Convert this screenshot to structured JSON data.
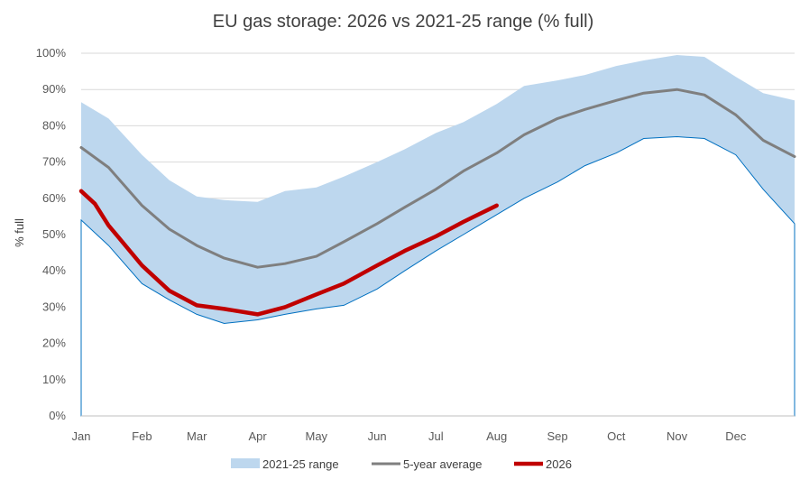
{
  "chart_data": {
    "type": "area",
    "title": "EU gas storage: 2026 vs 2021-25 range (% full)",
    "xlabel": "",
    "ylabel": "% full",
    "ylim": [
      0,
      100
    ],
    "y_ticks": [
      "0%",
      "10%",
      "20%",
      "30%",
      "40%",
      "50%",
      "60%",
      "70%",
      "80%",
      "90%",
      "100%"
    ],
    "categories": [
      "Jan",
      "Feb",
      "Mar",
      "Apr",
      "May",
      "Jun",
      "Jul",
      "Aug",
      "Sep",
      "Oct",
      "Nov",
      "Dec"
    ],
    "grid": true,
    "legend_position": "bottom",
    "colors": {
      "range": "#bdd7ee",
      "range_edge": "#0070c0",
      "average": "#7f7f7f",
      "current": "#c00000",
      "grid": "#d9d9d9"
    },
    "series": [
      {
        "name": "2021-25 range",
        "kind": "band",
        "x": [
          "Jan 1",
          "Jan 15",
          "Feb 1",
          "Feb 15",
          "Mar 1",
          "Mar 15",
          "Apr 1",
          "Apr 15",
          "May 1",
          "May 15",
          "Jun 1",
          "Jun 15",
          "Jul 1",
          "Jul 15",
          "Aug 1",
          "Aug 15",
          "Sep 1",
          "Sep 15",
          "Oct 1",
          "Oct 15",
          "Nov 1",
          "Nov 15",
          "Dec 1",
          "Dec 15",
          "Dec 31"
        ],
        "upper": [
          86.5,
          82.0,
          72.0,
          65.0,
          60.5,
          59.5,
          59.0,
          62.0,
          63.0,
          66.0,
          70.0,
          73.5,
          78.0,
          81.0,
          86.0,
          91.0,
          92.5,
          94.0,
          96.5,
          98.0,
          99.5,
          99.0,
          93.5,
          89.0,
          87.0
        ],
        "lower": [
          54.0,
          47.0,
          36.5,
          32.0,
          28.0,
          25.5,
          26.5,
          28.0,
          29.5,
          30.5,
          35.0,
          40.0,
          45.5,
          50.0,
          55.5,
          60.0,
          64.5,
          69.0,
          72.5,
          76.5,
          77.0,
          76.5,
          72.0,
          62.5,
          53.0
        ]
      },
      {
        "name": "5-year average",
        "kind": "line",
        "x": [
          "Jan 1",
          "Jan 15",
          "Feb 1",
          "Feb 15",
          "Mar 1",
          "Mar 15",
          "Apr 1",
          "Apr 15",
          "May 1",
          "May 15",
          "Jun 1",
          "Jun 15",
          "Jul 1",
          "Jul 15",
          "Aug 1",
          "Aug 15",
          "Sep 1",
          "Sep 15",
          "Oct 1",
          "Oct 15",
          "Nov 1",
          "Nov 15",
          "Dec 1",
          "Dec 15",
          "Dec 31"
        ],
        "values": [
          74.0,
          68.5,
          58.0,
          51.5,
          47.0,
          43.5,
          41.0,
          42.0,
          44.0,
          48.0,
          53.0,
          57.5,
          62.5,
          67.5,
          72.5,
          77.5,
          82.0,
          84.5,
          87.0,
          89.0,
          90.0,
          88.5,
          83.0,
          76.0,
          71.5
        ]
      },
      {
        "name": "2026",
        "kind": "line",
        "x": [
          "Jan 1",
          "Jan 8",
          "Jan 15",
          "Feb 1",
          "Feb 15",
          "Mar 1",
          "Mar 15",
          "Apr 1",
          "Apr 15",
          "May 1",
          "May 15",
          "Jun 1",
          "Jun 15",
          "Jul 1",
          "Jul 15",
          "Aug 1"
        ],
        "values": [
          62.0,
          58.5,
          52.5,
          41.5,
          34.5,
          30.5,
          29.5,
          28.0,
          30.0,
          33.5,
          36.5,
          41.5,
          45.5,
          49.5,
          53.5,
          58.0
        ]
      }
    ]
  }
}
